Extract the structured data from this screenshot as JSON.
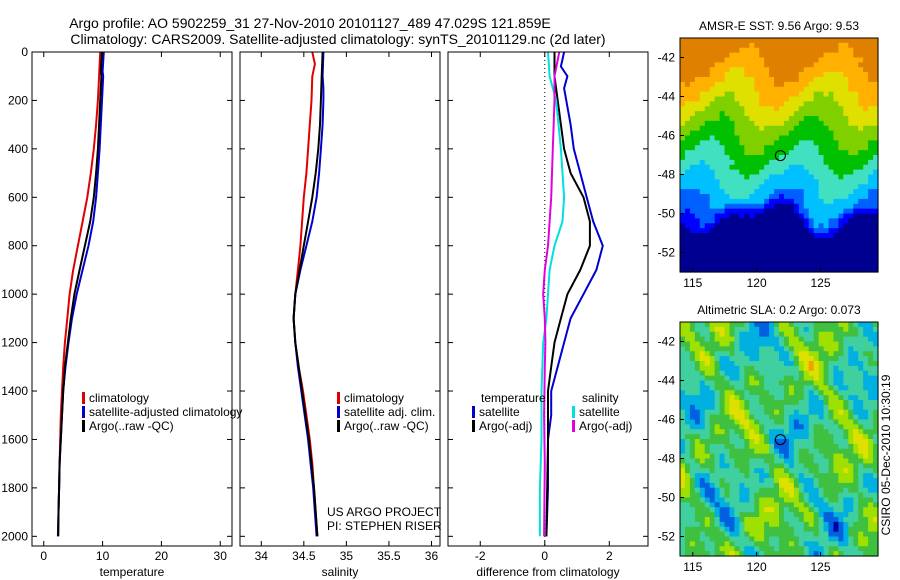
{
  "header": {
    "line1": "Argo profile: AO 5902259_31 27-Nov-2010 20101127_489 47.029S 121.859E",
    "line2": "Climatology: CARS2009. Satellite-adjusted climatology: synTS_20101129.nc (2d later)"
  },
  "side_text": "CSIRO 05-Dec-2010 10:30:19",
  "colors": {
    "climatology": "#e00000",
    "satellite": "#0000d0",
    "argo": "#000000",
    "sal_satellite": "#00e0e0",
    "sal_argo": "#e000e0"
  },
  "chart_data": [
    {
      "type": "line",
      "name": "temperature-profile",
      "xlabel": "temperature",
      "ylabel": "",
      "xlim": [
        -2,
        32
      ],
      "ylim": [
        2040,
        0
      ],
      "xticks": [
        0,
        10,
        20,
        30
      ],
      "yticks": [
        0,
        200,
        400,
        600,
        800,
        1000,
        1200,
        1400,
        1600,
        1800,
        2000
      ],
      "legend": {
        "position": "lower-middle",
        "entries": [
          "climatology",
          "satellite-adjusted climatology",
          "Argo(..raw -QC)"
        ]
      },
      "series": [
        {
          "name": "climatology",
          "color_key": "climatology",
          "points": [
            [
              9.6,
              0
            ],
            [
              9.4,
              100
            ],
            [
              9.2,
              200
            ],
            [
              8.9,
              300
            ],
            [
              8.5,
              400
            ],
            [
              8,
              500
            ],
            [
              7.4,
              600
            ],
            [
              6.6,
              700
            ],
            [
              5.8,
              800
            ],
            [
              5,
              900
            ],
            [
              4.4,
              1000
            ],
            [
              4,
              1100
            ],
            [
              3.6,
              1200
            ],
            [
              3.3,
              1300
            ],
            [
              3.1,
              1400
            ],
            [
              2.9,
              1500
            ],
            [
              2.8,
              1600
            ],
            [
              2.7,
              1700
            ],
            [
              2.6,
              1800
            ],
            [
              2.5,
              1900
            ],
            [
              2.45,
              2000
            ]
          ]
        },
        {
          "name": "satellite-adjusted climatology",
          "color_key": "satellite",
          "points": [
            [
              10.2,
              0
            ],
            [
              10,
              80
            ],
            [
              10.1,
              100
            ],
            [
              9.9,
              200
            ],
            [
              9.7,
              300
            ],
            [
              9.5,
              400
            ],
            [
              9.2,
              500
            ],
            [
              8.9,
              600
            ],
            [
              8.4,
              700
            ],
            [
              7.6,
              800
            ],
            [
              6.6,
              900
            ],
            [
              5.6,
              1000
            ],
            [
              4.8,
              1100
            ],
            [
              4.2,
              1200
            ],
            [
              3.7,
              1300
            ],
            [
              3.3,
              1400
            ],
            [
              3.1,
              1500
            ],
            [
              2.9,
              1600
            ],
            [
              2.7,
              1700
            ],
            [
              2.6,
              1800
            ],
            [
              2.5,
              1900
            ],
            [
              2.4,
              2000
            ]
          ]
        },
        {
          "name": "Argo(..raw -QC)",
          "color_key": "argo",
          "points": [
            [
              9.9,
              0
            ],
            [
              9.7,
              80
            ],
            [
              9.8,
              100
            ],
            [
              9.6,
              200
            ],
            [
              9.4,
              300
            ],
            [
              9.2,
              400
            ],
            [
              8.9,
              500
            ],
            [
              8.5,
              600
            ],
            [
              7.9,
              700
            ],
            [
              7,
              800
            ],
            [
              6.1,
              900
            ],
            [
              5.2,
              1000
            ],
            [
              4.6,
              1100
            ],
            [
              4.1,
              1200
            ],
            [
              3.6,
              1300
            ],
            [
              3.3,
              1400
            ],
            [
              3.1,
              1500
            ],
            [
              2.9,
              1600
            ],
            [
              2.7,
              1700
            ],
            [
              2.6,
              1800
            ],
            [
              2.5,
              1900
            ],
            [
              2.45,
              2000
            ]
          ]
        }
      ]
    },
    {
      "type": "line",
      "name": "salinity-profile",
      "xlabel": "salinity",
      "ylabel": "",
      "xlim": [
        33.75,
        36.1
      ],
      "ylim": [
        2040,
        0
      ],
      "xticks": [
        34,
        34.5,
        35,
        35.5,
        36
      ],
      "legend": {
        "position": "lower-right",
        "entries": [
          "climatology",
          "satellite adj. clim.",
          "Argo(..raw -QC)"
        ]
      },
      "annotation": [
        "US ARGO PROJECT",
        "PI: STEPHEN RISER"
      ],
      "series": [
        {
          "name": "climatology",
          "color_key": "climatology",
          "points": [
            [
              34.6,
              0
            ],
            [
              34.63,
              50
            ],
            [
              34.6,
              100
            ],
            [
              34.59,
              200
            ],
            [
              34.57,
              300
            ],
            [
              34.55,
              400
            ],
            [
              34.53,
              500
            ],
            [
              34.5,
              600
            ],
            [
              34.48,
              700
            ],
            [
              34.46,
              800
            ],
            [
              34.43,
              900
            ],
            [
              34.4,
              1000
            ],
            [
              34.38,
              1100
            ],
            [
              34.4,
              1200
            ],
            [
              34.44,
              1300
            ],
            [
              34.49,
              1400
            ],
            [
              34.53,
              1500
            ],
            [
              34.57,
              1600
            ],
            [
              34.6,
              1700
            ],
            [
              34.62,
              1800
            ],
            [
              34.64,
              1900
            ],
            [
              34.66,
              2000
            ]
          ]
        },
        {
          "name": "satellite adj. clim.",
          "color_key": "satellite",
          "points": [
            [
              34.73,
              0
            ],
            [
              34.72,
              100
            ],
            [
              34.73,
              150
            ],
            [
              34.73,
              200
            ],
            [
              34.72,
              300
            ],
            [
              34.7,
              400
            ],
            [
              34.68,
              500
            ],
            [
              34.65,
              600
            ],
            [
              34.6,
              700
            ],
            [
              34.53,
              800
            ],
            [
              34.46,
              900
            ],
            [
              34.4,
              1000
            ],
            [
              34.38,
              1100
            ],
            [
              34.4,
              1200
            ],
            [
              34.43,
              1300
            ],
            [
              34.47,
              1400
            ],
            [
              34.51,
              1500
            ],
            [
              34.55,
              1600
            ],
            [
              34.58,
              1700
            ],
            [
              34.61,
              1800
            ],
            [
              34.63,
              1900
            ],
            [
              34.65,
              2000
            ]
          ]
        },
        {
          "name": "Argo(..raw -QC)",
          "color_key": "argo",
          "points": [
            [
              34.72,
              0
            ],
            [
              34.71,
              100
            ],
            [
              34.7,
              200
            ],
            [
              34.69,
              300
            ],
            [
              34.67,
              400
            ],
            [
              34.64,
              500
            ],
            [
              34.6,
              600
            ],
            [
              34.55,
              700
            ],
            [
              34.5,
              800
            ],
            [
              34.45,
              900
            ],
            [
              34.4,
              1000
            ],
            [
              34.38,
              1100
            ],
            [
              34.4,
              1200
            ],
            [
              34.44,
              1300
            ],
            [
              34.48,
              1400
            ],
            [
              34.52,
              1500
            ],
            [
              34.56,
              1600
            ],
            [
              34.59,
              1700
            ],
            [
              34.62,
              1800
            ],
            [
              34.64,
              1900
            ],
            [
              34.66,
              2000
            ]
          ]
        }
      ]
    },
    {
      "type": "line",
      "name": "difference-profile",
      "xlabel": "difference from climatology",
      "ylabel": "",
      "xlim": [
        -3,
        3.2
      ],
      "ylim": [
        2040,
        0
      ],
      "xticks": [
        -2,
        0,
        2
      ],
      "zero_line": "dotted",
      "legend": {
        "position": "lower",
        "groups": [
          {
            "title": "temperature",
            "entries": [
              "satellite",
              "Argo(-adj)"
            ]
          },
          {
            "title": "salinity",
            "entries": [
              "satellite",
              "Argo(-adj)"
            ]
          }
        ]
      },
      "series": [
        {
          "name": "temperature satellite",
          "color_key": "satellite",
          "points": [
            [
              0.6,
              0
            ],
            [
              0.5,
              60
            ],
            [
              0.7,
              100
            ],
            [
              0.6,
              150
            ],
            [
              0.8,
              300
            ],
            [
              0.9,
              400
            ],
            [
              1.1,
              500
            ],
            [
              1.3,
              600
            ],
            [
              1.5,
              700
            ],
            [
              1.8,
              800
            ],
            [
              1.6,
              900
            ],
            [
              1.2,
              1000
            ],
            [
              0.8,
              1100
            ],
            [
              0.6,
              1200
            ],
            [
              0.4,
              1300
            ],
            [
              0.2,
              1400
            ],
            [
              0.2,
              1500
            ],
            [
              0.1,
              1600
            ],
            [
              0.1,
              1800
            ],
            [
              0.05,
              2000
            ]
          ]
        },
        {
          "name": "temperature Argo(-adj)",
          "color_key": "argo",
          "points": [
            [
              0.3,
              0
            ],
            [
              0.3,
              100
            ],
            [
              0.4,
              200
            ],
            [
              0.6,
              400
            ],
            [
              0.8,
              500
            ],
            [
              1.2,
              600
            ],
            [
              1.4,
              700
            ],
            [
              1.4,
              800
            ],
            [
              1.1,
              900
            ],
            [
              0.7,
              1000
            ],
            [
              0.5,
              1100
            ],
            [
              0.3,
              1200
            ],
            [
              0.2,
              1300
            ],
            [
              0.1,
              1400
            ],
            [
              0.1,
              1600
            ],
            [
              0.05,
              2000
            ]
          ]
        },
        {
          "name": "salinity satellite",
          "color_key": "sal_satellite",
          "points": [
            [
              0.1,
              0
            ],
            [
              0.15,
              100
            ],
            [
              0.35,
              200
            ],
            [
              0.5,
              400
            ],
            [
              0.6,
              600
            ],
            [
              0.55,
              700
            ],
            [
              0.3,
              800
            ],
            [
              0.15,
              900
            ],
            [
              0.1,
              1000
            ],
            [
              0.05,
              1100
            ],
            [
              -0.05,
              1200
            ],
            [
              -0.1,
              1400
            ],
            [
              -0.1,
              1600
            ],
            [
              -0.15,
              1800
            ],
            [
              -0.15,
              2000
            ]
          ]
        },
        {
          "name": "salinity Argo(-adj)",
          "color_key": "sal_argo",
          "points": [
            [
              0.45,
              0
            ],
            [
              0.3,
              100
            ],
            [
              0.3,
              200
            ],
            [
              0.25,
              400
            ],
            [
              0.2,
              600
            ],
            [
              0.1,
              800
            ],
            [
              0.0,
              900
            ],
            [
              -0.05,
              1000
            ],
            [
              0,
              1100
            ],
            [
              0.02,
              1200
            ],
            [
              0,
              1300
            ],
            [
              -0.02,
              1500
            ],
            [
              0,
              1700
            ],
            [
              -0.02,
              2000
            ]
          ]
        }
      ]
    },
    {
      "type": "heatmap",
      "name": "sst-map",
      "title": "AMSR-E SST: 9.56 Argo: 9.53",
      "xlim": [
        114,
        129.5
      ],
      "ylim": [
        -53,
        -41
      ],
      "xticks": [
        115,
        120,
        125
      ],
      "yticks": [
        -42,
        -44,
        -46,
        -48,
        -50,
        -52
      ],
      "marker": {
        "lon": 121.859,
        "lat": -47.029
      },
      "palette": [
        "#000090",
        "#0000ff",
        "#0060ff",
        "#00c0ff",
        "#40e0c0",
        "#00c000",
        "#80d000",
        "#e0e000",
        "#ffb000",
        "#e08000"
      ]
    },
    {
      "type": "heatmap",
      "name": "sla-map",
      "title": "Altimetric SLA: 0.2 Argo: 0.073",
      "xlim": [
        114,
        129.5
      ],
      "ylim": [
        -53,
        -41
      ],
      "xticks": [
        115,
        120,
        125
      ],
      "yticks": [
        -42,
        -44,
        -46,
        -48,
        -50,
        -52
      ],
      "marker": {
        "lon": 121.859,
        "lat": -47.029
      },
      "palette": [
        "#0000a0",
        "#0060e0",
        "#00b0e0",
        "#40d0a0",
        "#40c040",
        "#a0e000",
        "#e0e000",
        "#f0a000"
      ]
    }
  ]
}
